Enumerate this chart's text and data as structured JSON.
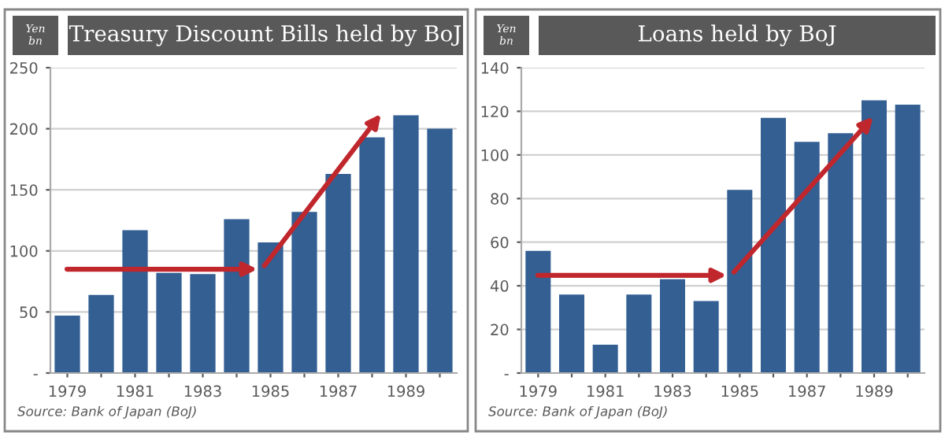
{
  "chart_data": [
    {
      "type": "bar",
      "title": "Treasury Discount Bills held by BoJ",
      "ylabel": "Yen\nbn",
      "categories": [
        "1979",
        null,
        "1981",
        null,
        "1983",
        null,
        "1985",
        null,
        "1987",
        null,
        "1989",
        null
      ],
      "values": [
        47,
        64,
        117,
        82,
        81,
        126,
        107,
        132,
        163,
        193,
        211,
        200
      ],
      "color": "#335f93",
      "ylim": [
        0,
        250
      ],
      "yticks": [
        {
          "value": 0,
          "label": "-"
        },
        50,
        100,
        150,
        200,
        250
      ],
      "grid": "y",
      "annotations": [
        "Source: Bank of Japan (BoJ)"
      ]
    },
    {
      "type": "bar",
      "title": "Loans held by BoJ",
      "ylabel": "Yen\nbn",
      "categories": [
        "1979",
        null,
        "1981",
        null,
        "1983",
        null,
        "1985",
        null,
        "1987",
        null,
        "1989",
        null
      ],
      "values": [
        56,
        36,
        13,
        36,
        43,
        33,
        84,
        117,
        106,
        110,
        125,
        123
      ],
      "color": "#335f93",
      "ylim": [
        0,
        140
      ],
      "yticks": [
        {
          "value": 0,
          "label": "-"
        },
        20,
        40,
        60,
        80,
        100,
        120,
        140
      ],
      "grid": "y",
      "annotations": [
        "Source: Bank of Japan (BoJ)"
      ]
    }
  ]
}
